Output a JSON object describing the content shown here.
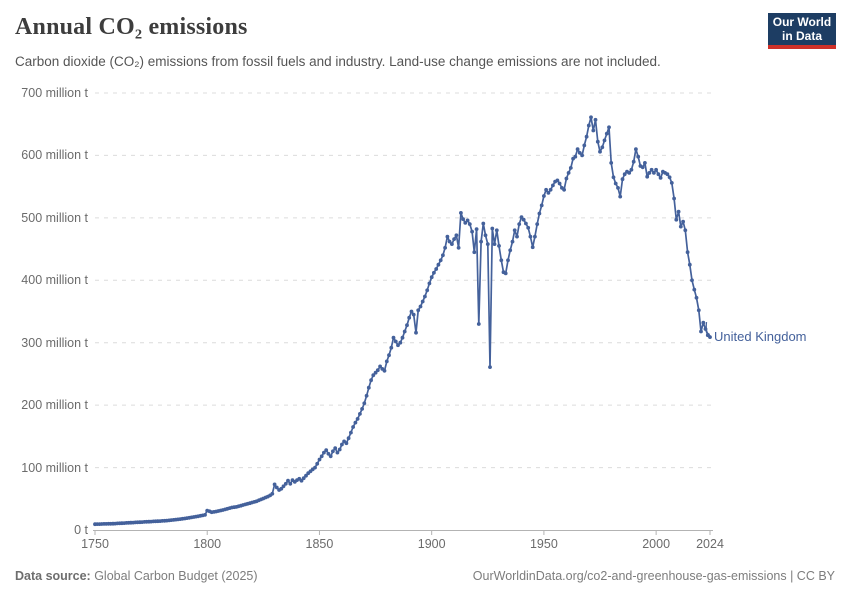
{
  "header": {
    "title": "Annual CO₂ emissions",
    "subtitle": "Carbon dioxide (CO₂) emissions from fossil fuels and industry. Land-use change emissions are not included.",
    "logo": {
      "line1": "Our World",
      "line2": "in Data",
      "bg_color": "#1d3d63",
      "accent_color": "#cf3129"
    }
  },
  "footer": {
    "source_label": "Data source:",
    "source_value": " Global Carbon Budget (2025)",
    "link": "OurWorldinData.org/co2-and-greenhouse-gas-emissions | CC BY"
  },
  "chart_data": {
    "type": "line",
    "title": "Annual CO₂ emissions",
    "xlabel": "",
    "ylabel": "",
    "xlim": [
      1750,
      2024
    ],
    "ylim": [
      0,
      700
    ],
    "grid": "dashed-horizontal",
    "legend_position": "end-of-line-label",
    "end_label": "United Kingdom",
    "x_ticks": [
      1750,
      1800,
      1850,
      1900,
      1950,
      2000,
      2024
    ],
    "y_ticks": [
      {
        "value": 0,
        "label": "0 t"
      },
      {
        "value": 100,
        "label": "100 million t"
      },
      {
        "value": 200,
        "label": "200 million t"
      },
      {
        "value": 300,
        "label": "300 million t"
      },
      {
        "value": 400,
        "label": "400 million t"
      },
      {
        "value": 500,
        "label": "500 million t"
      },
      {
        "value": 600,
        "label": "600 million t"
      },
      {
        "value": 700,
        "label": "700 million t"
      }
    ],
    "series": [
      {
        "name": "United Kingdom",
        "color": "#44619b",
        "unit": "million tonnes CO₂",
        "x_start": 1750,
        "x_step": 1,
        "values": [
          9.3,
          9.4,
          9.5,
          9.6,
          9.7,
          9.8,
          9.9,
          10.0,
          10.1,
          10.3,
          10.5,
          10.7,
          10.9,
          11.1,
          11.3,
          11.5,
          11.7,
          11.9,
          12.1,
          12.3,
          12.5,
          12.7,
          12.9,
          13.1,
          13.3,
          13.5,
          13.7,
          13.9,
          14.1,
          14.3,
          14.5,
          14.8,
          15.1,
          15.4,
          15.8,
          16.2,
          16.6,
          17.0,
          17.5,
          18.0,
          18.5,
          19.0,
          19.6,
          20.2,
          20.8,
          21.4,
          22.0,
          22.7,
          23.4,
          24.2,
          31,
          30,
          28.5,
          29,
          29.7,
          30.5,
          31.2,
          32,
          33,
          34,
          35,
          36,
          36.5,
          37,
          38,
          39,
          40,
          41,
          42,
          43,
          44,
          45,
          46,
          47.5,
          49,
          50.5,
          52,
          53.5,
          55.5,
          58,
          73,
          68,
          64,
          66,
          70,
          74,
          79,
          74,
          80,
          77,
          80,
          82,
          79,
          83,
          87,
          91,
          94,
          97,
          100,
          106,
          113,
          118,
          124,
          128,
          122,
          118,
          126,
          131,
          124,
          129,
          137,
          142,
          139,
          147,
          156,
          165,
          172,
          178,
          186,
          194,
          203,
          215,
          228,
          240,
          248,
          252,
          256,
          262,
          258,
          255,
          270,
          280,
          292,
          308,
          302,
          296,
          300,
          308,
          318,
          328,
          340,
          350,
          345,
          316,
          352,
          358,
          366,
          374,
          384,
          395,
          405,
          412,
          418,
          425,
          432,
          440,
          452,
          470,
          462,
          458,
          466,
          472,
          452,
          508,
          498,
          492,
          496,
          490,
          478,
          445,
          482,
          330,
          462,
          491,
          472,
          458,
          261,
          483,
          458,
          480,
          455,
          432,
          413,
          411,
          432,
          448,
          462,
          480,
          470,
          490,
          501,
          497,
          491,
          484,
          470,
          453,
          470,
          490,
          507,
          520,
          535,
          545,
          540,
          545,
          552,
          558,
          560,
          555,
          548,
          545,
          563,
          572,
          580,
          595,
          598,
          610,
          604,
          600,
          616,
          630,
          648,
          661,
          640,
          657,
          622,
          606,
          613,
          624,
          635,
          645,
          588,
          565,
          555,
          548,
          534,
          562,
          570,
          574,
          572,
          577,
          590,
          610,
          598,
          583,
          581,
          588,
          566,
          572,
          577,
          572,
          577,
          570,
          564,
          574,
          572,
          570,
          565,
          556,
          531,
          497,
          510,
          486,
          494,
          480,
          445,
          425,
          400,
          385,
          372,
          352,
          318,
          332,
          322,
          312,
          309
        ]
      }
    ]
  }
}
